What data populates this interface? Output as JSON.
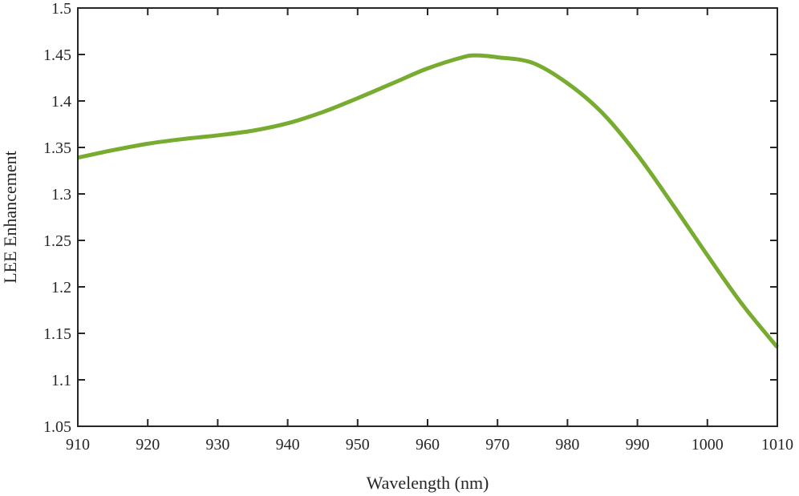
{
  "chart_data": {
    "type": "line",
    "title": "",
    "xlabel": "Wavelength (nm)",
    "ylabel": "LEE Enhancement",
    "xlim": [
      910,
      1010
    ],
    "ylim": [
      1.05,
      1.5
    ],
    "xticks": [
      910,
      920,
      930,
      940,
      950,
      960,
      970,
      980,
      990,
      1000,
      1010
    ],
    "xtick_labels": [
      "910",
      "920",
      "930",
      "940",
      "950",
      "960",
      "970",
      "980",
      "990",
      "1000",
      "1010"
    ],
    "yticks": [
      1.05,
      1.1,
      1.15,
      1.2,
      1.25,
      1.3,
      1.35,
      1.4,
      1.45,
      1.5
    ],
    "ytick_labels": [
      "1.05",
      "1.1",
      "1.15",
      "1.2",
      "1.25",
      "1.3",
      "1.35",
      "1.4",
      "1.45",
      "1.5"
    ],
    "grid": false,
    "series": [
      {
        "color": "#77ac30",
        "x": [
          910,
          915,
          920,
          925,
          930,
          935,
          940,
          945,
          950,
          955,
          960,
          965,
          967,
          970,
          975,
          980,
          985,
          990,
          995,
          1000,
          1005,
          1010
        ],
        "y": [
          1.339,
          1.347,
          1.354,
          1.359,
          1.363,
          1.368,
          1.376,
          1.388,
          1.403,
          1.419,
          1.435,
          1.447,
          1.449,
          1.447,
          1.441,
          1.419,
          1.387,
          1.342,
          1.289,
          1.234,
          1.181,
          1.135
        ]
      }
    ]
  }
}
